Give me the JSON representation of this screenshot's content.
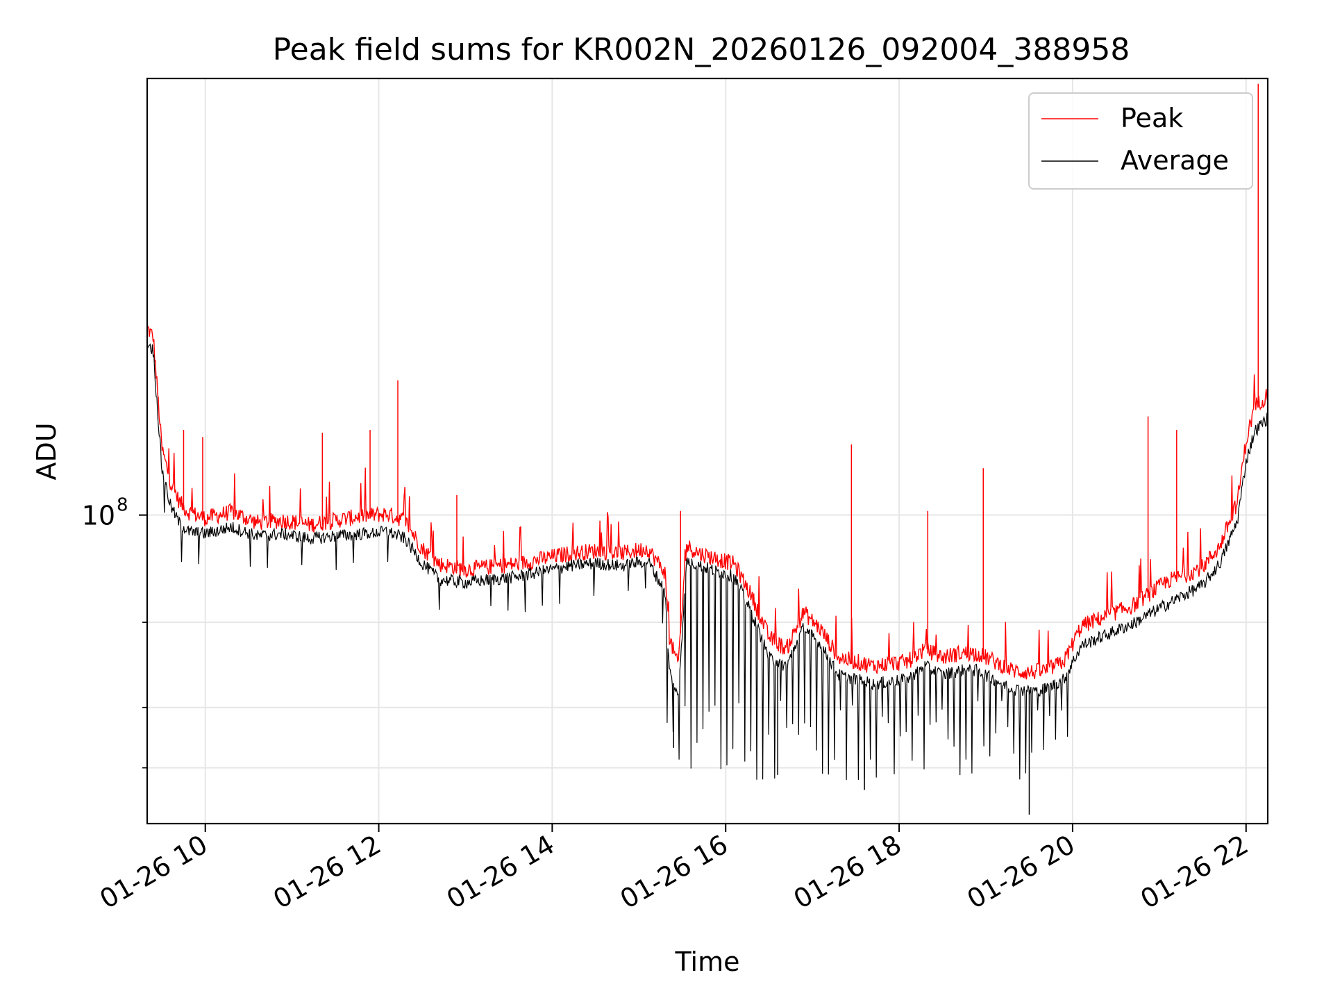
{
  "chart_data": {
    "type": "line",
    "title": "Peak field sums for KR002N_20260126_092004_388958",
    "xlabel": "Time",
    "ylabel": "ADU",
    "y_scale": "log",
    "xlim": [
      9.33,
      22.25
    ],
    "ylim": [
      23000000.0,
      800000000.0
    ],
    "grid": true,
    "legend_position": "top-right",
    "x_ticks": [
      {
        "value": 10,
        "label": "01-26 10"
      },
      {
        "value": 12,
        "label": "01-26 12"
      },
      {
        "value": 14,
        "label": "01-26 14"
      },
      {
        "value": 16,
        "label": "01-26 16"
      },
      {
        "value": 18,
        "label": "01-26 18"
      },
      {
        "value": 20,
        "label": "01-26 20"
      },
      {
        "value": 22,
        "label": "01-26 22"
      }
    ],
    "y_major_ticks": [
      {
        "value": 100000000,
        "label": "10",
        "exponent": "8"
      }
    ],
    "y_minor_ticks": [
      30000000,
      40000000,
      60000000
    ],
    "series": [
      {
        "name": "Peak",
        "color": "#ff0000",
        "x": [
          9.33,
          9.4,
          9.5,
          9.6,
          9.7,
          9.8,
          10.0,
          10.3,
          10.6,
          10.9,
          11.2,
          11.5,
          11.8,
          12.1,
          12.3,
          12.5,
          12.7,
          13.0,
          13.3,
          13.6,
          13.9,
          14.2,
          14.5,
          14.8,
          15.1,
          15.3,
          15.35,
          15.45,
          15.55,
          15.7,
          15.9,
          16.1,
          16.3,
          16.5,
          16.7,
          16.9,
          17.1,
          17.3,
          17.5,
          17.7,
          17.9,
          18.1,
          18.3,
          18.5,
          18.7,
          18.9,
          19.1,
          19.3,
          19.5,
          19.7,
          19.9,
          20.1,
          20.3,
          20.5,
          20.7,
          20.9,
          21.1,
          21.3,
          21.5,
          21.7,
          21.9,
          22.0,
          22.1,
          22.25
        ],
        "y": [
          240000000,
          230000000,
          135000000,
          115000000,
          105000000,
          100000000,
          97000000,
          100000000,
          95000000,
          96000000,
          94000000,
          96000000,
          98000000,
          99000000,
          96000000,
          84000000,
          78000000,
          76000000,
          77000000,
          78000000,
          80000000,
          82000000,
          83000000,
          82000000,
          84000000,
          75000000,
          55000000,
          48000000,
          85000000,
          82000000,
          80000000,
          78000000,
          67000000,
          55000000,
          52000000,
          62000000,
          57000000,
          50000000,
          49000000,
          48000000,
          48500000,
          49000000,
          52000000,
          50000000,
          51000000,
          51000000,
          49000000,
          47000000,
          46500000,
          47000000,
          49000000,
          58000000,
          60000000,
          62000000,
          64000000,
          68000000,
          72000000,
          74000000,
          77000000,
          85000000,
          105000000,
          140000000,
          165000000,
          175000000
        ]
      },
      {
        "name": "Average",
        "color": "#000000",
        "x": [
          9.33,
          9.4,
          9.5,
          9.6,
          9.7,
          9.8,
          10.0,
          10.3,
          10.6,
          10.9,
          11.2,
          11.5,
          11.8,
          12.1,
          12.3,
          12.5,
          12.7,
          13.0,
          13.3,
          13.6,
          13.9,
          14.2,
          14.5,
          14.8,
          15.1,
          15.3,
          15.35,
          15.45,
          15.55,
          15.7,
          15.9,
          16.1,
          16.3,
          16.5,
          16.7,
          16.9,
          17.1,
          17.3,
          17.5,
          17.7,
          17.9,
          18.1,
          18.3,
          18.5,
          18.7,
          18.9,
          19.1,
          19.3,
          19.5,
          19.7,
          19.9,
          20.1,
          20.3,
          20.5,
          20.7,
          20.9,
          21.1,
          21.3,
          21.5,
          21.7,
          21.9,
          22.0,
          22.1,
          22.25
        ],
        "y": [
          230000000,
          220000000,
          125000000,
          105000000,
          97000000,
          93000000,
          92000000,
          95000000,
          91000000,
          92000000,
          90000000,
          91000000,
          92000000,
          93000000,
          90000000,
          80000000,
          74000000,
          73000000,
          74000000,
          75000000,
          77000000,
          79000000,
          80000000,
          79000000,
          81000000,
          70000000,
          48000000,
          42000000,
          81000000,
          79000000,
          77000000,
          75000000,
          63000000,
          51000000,
          49000000,
          59000000,
          54000000,
          47000000,
          46000000,
          45000000,
          45500000,
          46000000,
          49000000,
          47000000,
          48000000,
          48000000,
          46000000,
          44000000,
          43500000,
          44000000,
          46000000,
          54000000,
          56000000,
          58000000,
          60000000,
          63000000,
          66000000,
          69000000,
          72000000,
          80000000,
          98000000,
          130000000,
          150000000,
          160000000
        ]
      }
    ],
    "spikes": [
      {
        "series": "Peak",
        "x": 9.75,
        "y": 150000000
      },
      {
        "series": "Peak",
        "x": 9.97,
        "y": 145000000
      },
      {
        "series": "Peak",
        "x": 11.35,
        "y": 148000000
      },
      {
        "series": "Peak",
        "x": 11.9,
        "y": 150000000
      },
      {
        "series": "Peak",
        "x": 12.22,
        "y": 190000000
      },
      {
        "series": "Peak",
        "x": 12.9,
        "y": 110000000
      },
      {
        "series": "Peak",
        "x": 15.48,
        "y": 102000000
      },
      {
        "series": "Peak",
        "x": 17.45,
        "y": 140000000
      },
      {
        "series": "Peak",
        "x": 18.33,
        "y": 102000000
      },
      {
        "series": "Peak",
        "x": 18.97,
        "y": 125000000
      },
      {
        "series": "Peak",
        "x": 20.87,
        "y": 160000000
      },
      {
        "series": "Peak",
        "x": 21.2,
        "y": 150000000
      },
      {
        "series": "Peak",
        "x": 22.14,
        "y": 780000000
      },
      {
        "series": "Average",
        "x": 15.4,
        "y": 33000000
      },
      {
        "series": "Average",
        "x": 16.6,
        "y": 29000000
      },
      {
        "series": "Average",
        "x": 17.6,
        "y": 27000000
      },
      {
        "series": "Average",
        "x": 19.5,
        "y": 24000000
      }
    ],
    "dips": {
      "series": "Average",
      "x_start": 15.3,
      "x_end": 20.0,
      "floor": 28000000
    }
  }
}
